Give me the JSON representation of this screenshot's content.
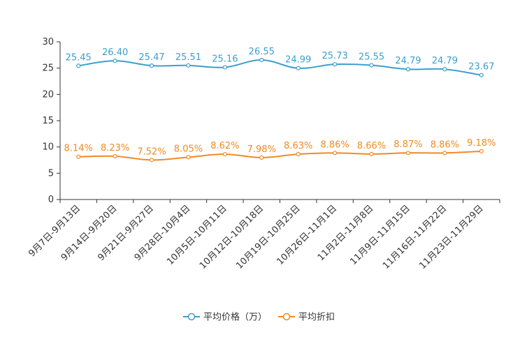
{
  "chart_data": {
    "type": "line",
    "title": "",
    "xlabel": "",
    "ylabel": "",
    "ylim": [
      0,
      30
    ],
    "yticks": [
      0,
      5,
      10,
      15,
      20,
      25,
      30
    ],
    "grid": false,
    "legend_position": "bottom-center",
    "categories": [
      "9月7日-9月13日",
      "9月14日-9月20日",
      "9月21日-9月27日",
      "9月28日-10月4日",
      "10月5日-10月11日",
      "10月12日-10月18日",
      "10月19日-10月25日",
      "10月26日-11月1日",
      "11月2日-11月8日",
      "11月9日-11月15日",
      "11月16日-11月22日",
      "11月23日-11月29日"
    ],
    "series": [
      {
        "name": "平均价格（万）",
        "color": "#3b9fcc",
        "values": [
          25.45,
          26.4,
          25.47,
          25.51,
          25.16,
          26.55,
          24.99,
          25.73,
          25.55,
          24.79,
          24.79,
          23.67
        ],
        "labels": [
          "25.45",
          "26.40",
          "25.47",
          "25.51",
          "25.16",
          "26.55",
          "24.99",
          "25.73",
          "25.55",
          "24.79",
          "24.79",
          "23.67"
        ]
      },
      {
        "name": "平均折扣",
        "color": "#f08a24",
        "values": [
          8.14,
          8.23,
          7.52,
          8.05,
          8.62,
          7.98,
          8.63,
          8.86,
          8.66,
          8.87,
          8.86,
          9.18
        ],
        "labels": [
          "8.14%",
          "8.23%",
          "7.52%",
          "8.05%",
          "8.62%",
          "7.98%",
          "8.63%",
          "8.86%",
          "8.66%",
          "8.87%",
          "8.86%",
          "9.18%"
        ]
      }
    ]
  }
}
